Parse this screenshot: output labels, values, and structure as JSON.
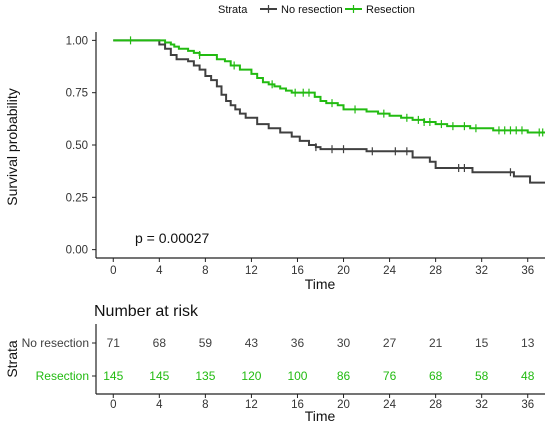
{
  "chart_data": [
    {
      "type": "line",
      "subtype": "kaplan-meier",
      "legend": {
        "title": "Strata",
        "placement": "top"
      },
      "xlabel": "Time",
      "ylabel": "Survival probability",
      "xlim": [
        -1.5,
        37.5
      ],
      "ylim": [
        -0.04,
        1.04
      ],
      "xticks": [
        "0",
        "4",
        "8",
        "12",
        "16",
        "20",
        "24",
        "28",
        "32",
        "36"
      ],
      "yticks": [
        "0.00",
        "0.25",
        "0.50",
        "0.75",
        "1.00"
      ],
      "grid": false,
      "annotation": "p = 0.00027",
      "series": [
        {
          "name": "No resection",
          "color": "#404040",
          "steps": [
            [
              0,
              1.0
            ],
            [
              4,
              0.98
            ],
            [
              4.5,
              0.96
            ],
            [
              5,
              0.93
            ],
            [
              5.5,
              0.91
            ],
            [
              6.5,
              0.9
            ],
            [
              7,
              0.88
            ],
            [
              7.5,
              0.86
            ],
            [
              8,
              0.83
            ],
            [
              8.5,
              0.81
            ],
            [
              9,
              0.78
            ],
            [
              9.4,
              0.74
            ],
            [
              9.8,
              0.71
            ],
            [
              10.2,
              0.69
            ],
            [
              10.6,
              0.67
            ],
            [
              11,
              0.65
            ],
            [
              11.5,
              0.63
            ],
            [
              12.5,
              0.6
            ],
            [
              13.5,
              0.58
            ],
            [
              14.5,
              0.56
            ],
            [
              15.5,
              0.54
            ],
            [
              16.2,
              0.52
            ],
            [
              17,
              0.5
            ],
            [
              17.6,
              0.49
            ],
            [
              18,
              0.48
            ],
            [
              22,
              0.47
            ],
            [
              26,
              0.44
            ],
            [
              27.5,
              0.42
            ],
            [
              28,
              0.39
            ],
            [
              31.2,
              0.37
            ],
            [
              34.8,
              0.35
            ],
            [
              36.2,
              0.32
            ]
          ],
          "censor_times": [
            17.6,
            19,
            20,
            22.5,
            24.5,
            25.5,
            30,
            30.5,
            34.5
          ],
          "end_time": 37.5
        },
        {
          "name": "Resection",
          "color": "#22bb11",
          "steps": [
            [
              0,
              1.0
            ],
            [
              4.5,
              0.99
            ],
            [
              5,
              0.98
            ],
            [
              5.3,
              0.97
            ],
            [
              5.7,
              0.96
            ],
            [
              6.5,
              0.95
            ],
            [
              7,
              0.94
            ],
            [
              7.5,
              0.93
            ],
            [
              9,
              0.91
            ],
            [
              9.7,
              0.9
            ],
            [
              10.2,
              0.88
            ],
            [
              11,
              0.86
            ],
            [
              12,
              0.84
            ],
            [
              12.5,
              0.82
            ],
            [
              13,
              0.8
            ],
            [
              13.5,
              0.79
            ],
            [
              14,
              0.78
            ],
            [
              14.5,
              0.77
            ],
            [
              15,
              0.76
            ],
            [
              15.5,
              0.75
            ],
            [
              17.5,
              0.73
            ],
            [
              18,
              0.71
            ],
            [
              18.5,
              0.7
            ],
            [
              19.5,
              0.69
            ],
            [
              20,
              0.67
            ],
            [
              22,
              0.66
            ],
            [
              23,
              0.65
            ],
            [
              24,
              0.64
            ],
            [
              25,
              0.63
            ],
            [
              26,
              0.62
            ],
            [
              27,
              0.61
            ],
            [
              28,
              0.6
            ],
            [
              29,
              0.59
            ],
            [
              31,
              0.58
            ],
            [
              33,
              0.57
            ],
            [
              36,
              0.56
            ]
          ],
          "censor_times": [
            1.5,
            7.5,
            10.5,
            13.8,
            15.8,
            16.5,
            17,
            19,
            21,
            23.5,
            25.5,
            26.5,
            27,
            27.5,
            28.5,
            29.5,
            30.5,
            31.5,
            33.5,
            34,
            34.5,
            35,
            35.5,
            37,
            37.3
          ],
          "end_time": 37.5
        }
      ]
    },
    {
      "type": "table",
      "title": "Number at risk",
      "ylabel": "Strata",
      "xlabel": "Time",
      "xlim": [
        -1.5,
        37.5
      ],
      "xticks": [
        "0",
        "4",
        "8",
        "12",
        "16",
        "20",
        "24",
        "28",
        "32",
        "36"
      ],
      "times": [
        0,
        4,
        8,
        12,
        16,
        20,
        24,
        28,
        32,
        36
      ],
      "rows": [
        {
          "name": "No resection",
          "color": "#404040",
          "values": [
            71,
            68,
            59,
            43,
            36,
            30,
            27,
            21,
            15,
            13
          ]
        },
        {
          "name": "Resection",
          "color": "#22bb11",
          "values": [
            145,
            145,
            135,
            120,
            100,
            86,
            76,
            68,
            58,
            48
          ]
        }
      ]
    }
  ]
}
